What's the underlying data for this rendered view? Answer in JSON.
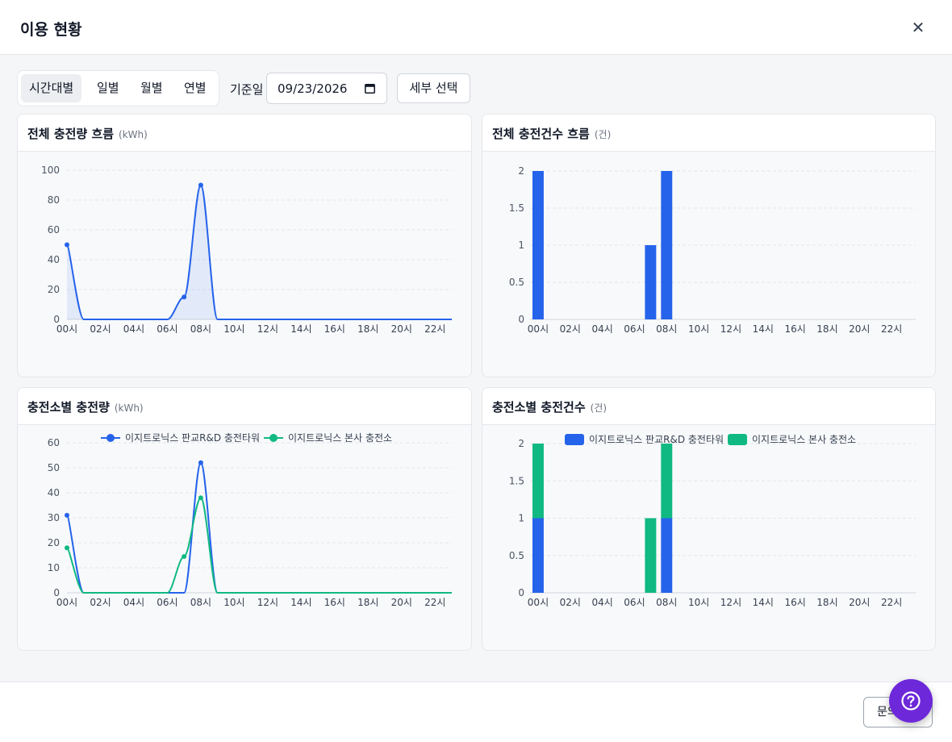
{
  "modal": {
    "title": "이용 현황",
    "close_icon": "close-icon"
  },
  "toolbar": {
    "segments": [
      "시간대별",
      "일별",
      "월별",
      "연별"
    ],
    "active_segment": "시간대별",
    "date_label": "기준일",
    "date_value": "09/23/2026",
    "detail_button": "세부 선택"
  },
  "cards": [
    {
      "title": "전체 충전량 흐름",
      "unit": "(kWh)"
    },
    {
      "title": "전체 충전건수 흐름",
      "unit": "(건)"
    },
    {
      "title": "충전소별 충전량",
      "unit": "(kWh)"
    },
    {
      "title": "충전소별 충전건수",
      "unit": "(건)"
    }
  ],
  "footer": {
    "inquiry_button": "문의"
  },
  "colors": {
    "series1": "#2563eb",
    "series2": "#10b981",
    "accent": "#6d28d9"
  },
  "chart_data": [
    {
      "type": "area",
      "x": [
        "00시",
        "01시",
        "02시",
        "03시",
        "04시",
        "05시",
        "06시",
        "07시",
        "08시",
        "09시",
        "10시",
        "11시",
        "12시",
        "13시",
        "14시",
        "15시",
        "16시",
        "17시",
        "18시",
        "19시",
        "20시",
        "21시",
        "22시",
        "23시"
      ],
      "x_ticks": [
        "00시",
        "02시",
        "04시",
        "06시",
        "08시",
        "10시",
        "12시",
        "14시",
        "16시",
        "18시",
        "20시",
        "22시"
      ],
      "series": [
        {
          "values": [
            50,
            0,
            0,
            0,
            0,
            0,
            0,
            15,
            90,
            0,
            0,
            0,
            0,
            0,
            0,
            0,
            0,
            0,
            0,
            0,
            0,
            0,
            0,
            0
          ]
        }
      ],
      "ylim": [
        0,
        100
      ],
      "y_ticks": [
        0,
        20,
        40,
        60,
        80,
        100
      ],
      "grid": true,
      "title": "",
      "xlabel": "",
      "ylabel": ""
    },
    {
      "type": "bar",
      "x": [
        "00시",
        "01시",
        "02시",
        "03시",
        "04시",
        "05시",
        "06시",
        "07시",
        "08시",
        "09시",
        "10시",
        "11시",
        "12시",
        "13시",
        "14시",
        "15시",
        "16시",
        "17시",
        "18시",
        "19시",
        "20시",
        "21시",
        "22시",
        "23시"
      ],
      "x_ticks": [
        "00시",
        "02시",
        "04시",
        "06시",
        "08시",
        "10시",
        "12시",
        "14시",
        "16시",
        "18시",
        "20시",
        "22시"
      ],
      "series": [
        {
          "values": [
            2,
            0,
            0,
            0,
            0,
            0,
            0,
            1,
            2,
            0,
            0,
            0,
            0,
            0,
            0,
            0,
            0,
            0,
            0,
            0,
            0,
            0,
            0,
            0
          ]
        }
      ],
      "ylim": [
        0,
        2
      ],
      "y_ticks": [
        "0",
        "0.5",
        "1",
        "1.5",
        "2"
      ],
      "grid": true,
      "title": "",
      "xlabel": "",
      "ylabel": ""
    },
    {
      "type": "line",
      "x": [
        "00시",
        "01시",
        "02시",
        "03시",
        "04시",
        "05시",
        "06시",
        "07시",
        "08시",
        "09시",
        "10시",
        "11시",
        "12시",
        "13시",
        "14시",
        "15시",
        "16시",
        "17시",
        "18시",
        "19시",
        "20시",
        "21시",
        "22시",
        "23시"
      ],
      "x_ticks": [
        "00시",
        "02시",
        "04시",
        "06시",
        "08시",
        "10시",
        "12시",
        "14시",
        "16시",
        "18시",
        "20시",
        "22시"
      ],
      "series": [
        {
          "name": "이지트로닉스 판교R&D 충전타워",
          "values": [
            31,
            0,
            0,
            0,
            0,
            0,
            0,
            0,
            52,
            0,
            0,
            0,
            0,
            0,
            0,
            0,
            0,
            0,
            0,
            0,
            0,
            0,
            0,
            0
          ]
        },
        {
          "name": "이지트로닉스 본사 충전소",
          "values": [
            18,
            0,
            0,
            0,
            0,
            0,
            0,
            14.5,
            38,
            0,
            0,
            0,
            0,
            0,
            0,
            0,
            0,
            0,
            0,
            0,
            0,
            0,
            0,
            0
          ]
        }
      ],
      "ylim": [
        0,
        60
      ],
      "y_ticks": [
        0,
        10,
        20,
        30,
        40,
        50,
        60
      ],
      "grid": true,
      "legend": "top-center",
      "title": "",
      "xlabel": "",
      "ylabel": ""
    },
    {
      "type": "bar",
      "stacked": true,
      "x": [
        "00시",
        "01시",
        "02시",
        "03시",
        "04시",
        "05시",
        "06시",
        "07시",
        "08시",
        "09시",
        "10시",
        "11시",
        "12시",
        "13시",
        "14시",
        "15시",
        "16시",
        "17시",
        "18시",
        "19시",
        "20시",
        "21시",
        "22시",
        "23시"
      ],
      "x_ticks": [
        "00시",
        "02시",
        "04시",
        "06시",
        "08시",
        "10시",
        "12시",
        "14시",
        "16시",
        "18시",
        "20시",
        "22시"
      ],
      "series": [
        {
          "name": "이지트로닉스 판교R&D 충전타워",
          "values": [
            1,
            0,
            0,
            0,
            0,
            0,
            0,
            0,
            1,
            0,
            0,
            0,
            0,
            0,
            0,
            0,
            0,
            0,
            0,
            0,
            0,
            0,
            0,
            0
          ]
        },
        {
          "name": "이지트로닉스 본사 충전소",
          "values": [
            1,
            0,
            0,
            0,
            0,
            0,
            0,
            1,
            1,
            0,
            0,
            0,
            0,
            0,
            0,
            0,
            0,
            0,
            0,
            0,
            0,
            0,
            0,
            0
          ]
        }
      ],
      "ylim": [
        0,
        2
      ],
      "y_ticks": [
        "0",
        "0.5",
        "1",
        "1.5",
        "2"
      ],
      "grid": true,
      "legend": "top-center",
      "title": "",
      "xlabel": "",
      "ylabel": ""
    }
  ]
}
